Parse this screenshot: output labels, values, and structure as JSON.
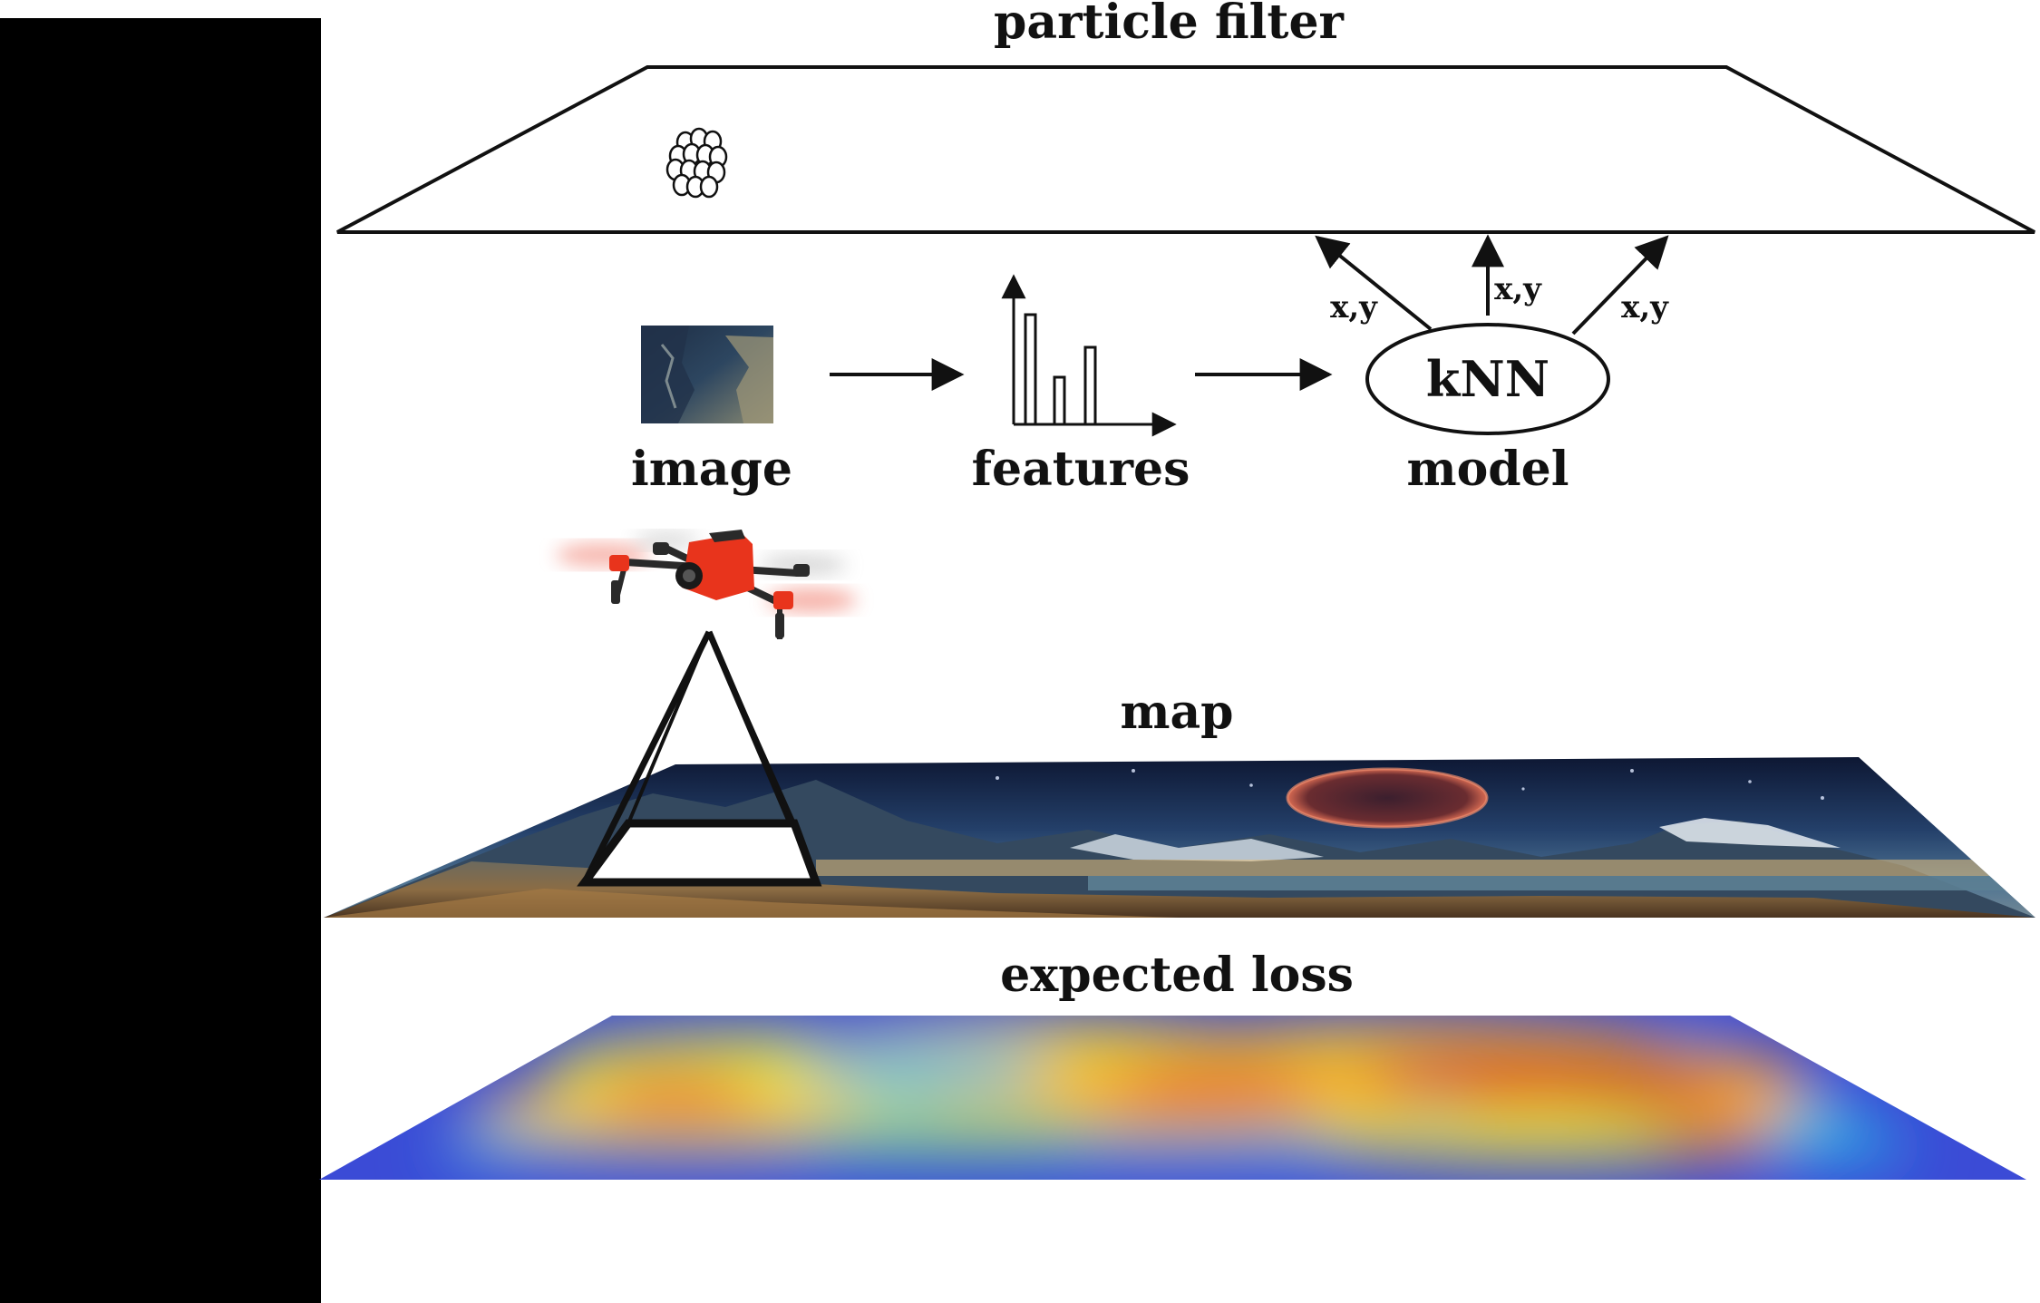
{
  "layers": {
    "particle_filter": {
      "title": "particle filter"
    },
    "pipeline": {
      "image_label": "image",
      "features_label": "features",
      "model_label": "model",
      "knn_label": "kNN",
      "xy_labels": [
        "x,y",
        "x,y",
        "x,y"
      ]
    },
    "map": {
      "title": "map"
    },
    "expected_loss": {
      "title": "expected loss"
    }
  },
  "icons": {
    "drone": "quadcopter-drone-icon",
    "particles": "particle-cluster-icon",
    "camera_frustum": "camera-frustum-icon"
  },
  "colors": {
    "left_bar": "#000000",
    "drone_body": "#e8341c",
    "heatmap_low": "#3b4bd6",
    "heatmap_high": "#d8221c"
  }
}
